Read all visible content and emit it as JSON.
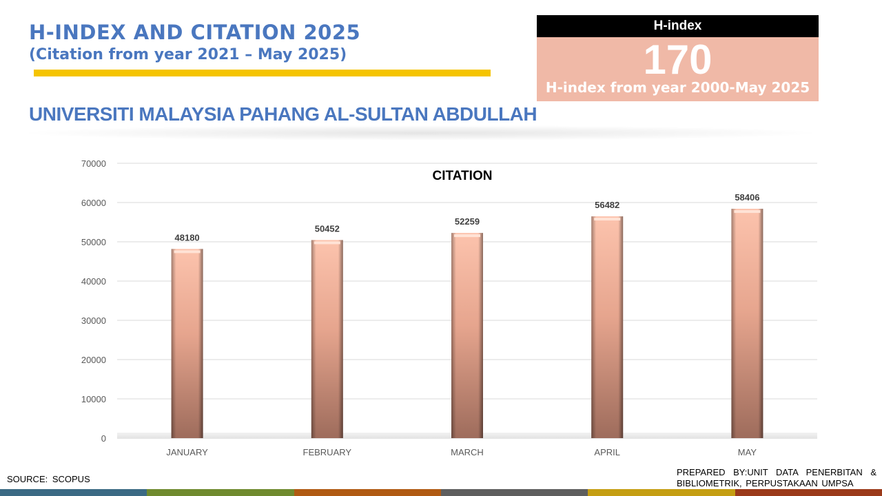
{
  "header": {
    "title": "H-INDEX AND CITATION 2025",
    "subtitle": "(Citation from year 2021 – May 2025)",
    "accent_color": "#f5c400",
    "title_color": "#4a77bf"
  },
  "university": "UNIVERSITI MALAYSIA PAHANG AL-SULTAN ABDULLAH",
  "h_index_box": {
    "heading": "H-index",
    "value": "170",
    "caption": "H-index from year 2000-May 2025",
    "head_color": "#000000",
    "body_color": "#f0b9a7"
  },
  "chart_data": {
    "type": "bar",
    "title": "CITATION",
    "categories": [
      "JANUARY",
      "FEBRUARY",
      "MARCH",
      "APRIL",
      "MAY"
    ],
    "values": [
      48180,
      50452,
      52259,
      56482,
      58406
    ],
    "ylim": [
      0,
      70000
    ],
    "yticks": [
      0,
      10000,
      20000,
      30000,
      40000,
      50000,
      60000,
      70000
    ],
    "xlabel": "",
    "ylabel": "",
    "grid": true,
    "legend": false,
    "bar_color": "#e8a58c"
  },
  "footer": {
    "source": "SOURCE:  SCOPUS",
    "prepared_by": "PREPARED BY:UNIT DATA PENERBITAN & BIBLIOMETRIK, PERPUSTAKAAN UMPSA",
    "stripe_colors": [
      "#3b6a84",
      "#6f8a2e",
      "#b05a12",
      "#5e5e5e",
      "#c59e12",
      "#9b3a1a"
    ]
  }
}
